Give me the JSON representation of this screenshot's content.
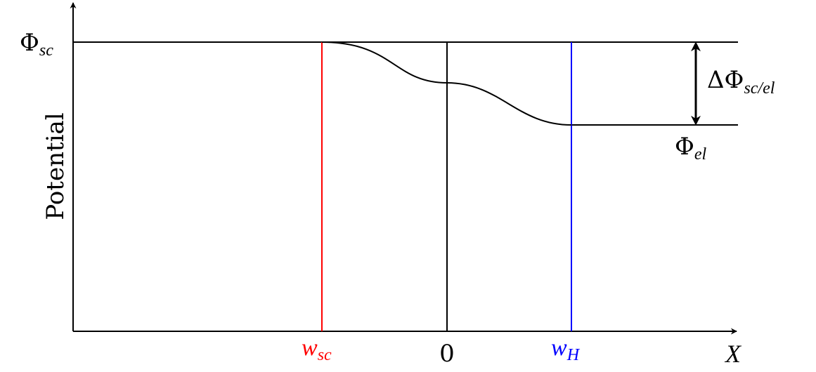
{
  "labels": {
    "phi": "Φ",
    "delta_phi": "ΔΦ",
    "sc_sub": "sc",
    "el_sub": "el",
    "sc_el_sub": "sc/el",
    "w": "w",
    "h_sub": "H",
    "zero": "0",
    "x_axis": "X",
    "y_axis": "Potential"
  },
  "colors": {
    "axis": "#000000",
    "w_sc_line": "#ff0000",
    "w_h_line": "#0000ff",
    "curve": "#000000"
  }
}
